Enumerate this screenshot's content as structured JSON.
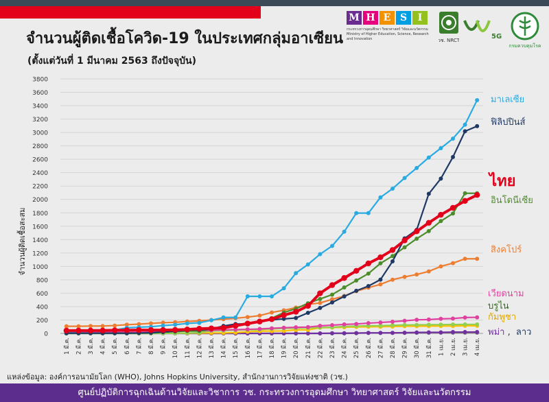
{
  "header": {
    "title": "จำนวนผู้ติดเชื้อโควิด-19 ในประเทศกลุ่มอาเซียน",
    "subtitle": "(ตั้งแต่วันที่ 1 มีนาคม 2563 ถึงปัจจุบัน)"
  },
  "logos": {
    "mhesi_letters": [
      "M",
      "H",
      "E",
      "S",
      "I"
    ],
    "mhesi_colors": [
      "#6b2c91",
      "#e5007d",
      "#f39200",
      "#009fe3",
      "#95c11f"
    ],
    "mhesi_caption": "กระทรวงการอุดมศึกษา วิทยาศาสตร์ วิจัยและนวัตกรรม Ministry of Higher Education, Science, Research and Innovation",
    "nrct_label": "วช. NRCT",
    "vch_label": "วช",
    "vch_5g": "5G",
    "dept_label": "กรมควบคุมโรค"
  },
  "source_text": "แหล่งข้อมูล: องค์การอนามัยโลก (WHO), Johns Hopkins University, สำนักงานการวิจัยแห่งชาติ (วช.)",
  "footer_text": "ศูนย์ปฏิบัติการฉุกเฉินด้านวิจัยและวิชาการ    วช.   กระทรวงการอุดมศึกษา วิทยาศาสตร์ วิจัยและนวัตกรรม",
  "chart_data": {
    "type": "line",
    "ylabel": "จำนวนผู้ติดเชื้อสะสม",
    "ylim": [
      0,
      3800
    ],
    "yticks": [
      0,
      200,
      400,
      600,
      800,
      1000,
      1200,
      1400,
      1600,
      1800,
      2000,
      2200,
      2400,
      2600,
      2800,
      3000,
      3200,
      3400,
      3600,
      3800
    ],
    "grid": true,
    "categories": [
      "1 มี.ค.",
      "2 มี.ค.",
      "3 มี.ค.",
      "4 มี.ค.",
      "5 มี.ค.",
      "6 มี.ค.",
      "7 มี.ค.",
      "8 มี.ค.",
      "9 มี.ค.",
      "10 มี.ค.",
      "11 มี.ค.",
      "12 มี.ค.",
      "13 มี.ค.",
      "14 มี.ค.",
      "15 มี.ค.",
      "16 มี.ค.",
      "17 มี.ค.",
      "18 มี.ค.",
      "19 มี.ค.",
      "20 มี.ค.",
      "21 มี.ค.",
      "22 มี.ค.",
      "23 มี.ค.",
      "24 มี.ค.",
      "25 มี.ค.",
      "26 มี.ค.",
      "27 มี.ค.",
      "28 มี.ค.",
      "29 มี.ค.",
      "30 มี.ค.",
      "31 มี.ค.",
      "1 เม.ย.",
      "2 เม.ย.",
      "3 เม.ย.",
      "4 เม.ย."
    ],
    "series": [
      {
        "name": "มาเลเซีย",
        "color": "#29abe2",
        "values": [
          29,
          29,
          36,
          50,
          50,
          83,
          93,
          99,
          117,
          129,
          149,
          158,
          197,
          238,
          238,
          553,
          553,
          553,
          673,
          900,
          1030,
          1183,
          1306,
          1518,
          1796,
          1796,
          2031,
          2161,
          2320,
          2470,
          2626,
          2766,
          2908,
          3116,
          3483
        ]
      },
      {
        "name": "ฟิลิปปินส์",
        "color": "#1f3864",
        "values": [
          3,
          3,
          3,
          3,
          3,
          3,
          6,
          10,
          20,
          33,
          49,
          52,
          64,
          111,
          140,
          142,
          187,
          202,
          217,
          230,
          307,
          380,
          462,
          552,
          636,
          707,
          803,
          1075,
          1418,
          1546,
          2084,
          2311,
          2633,
          3018,
          3094
        ]
      },
      {
        "name": "ไทย",
        "color": "#e3001b",
        "values": [
          42,
          42,
          43,
          43,
          47,
          48,
          50,
          50,
          50,
          53,
          59,
          70,
          75,
          82,
          114,
          147,
          177,
          212,
          272,
          322,
          411,
          599,
          721,
          827,
          934,
          1045,
          1136,
          1245,
          1388,
          1524,
          1651,
          1771,
          1875,
          1978,
          2067
        ]
      },
      {
        "name": "อินโดนีเซีย",
        "color": "#4d8c2a",
        "values": [
          2,
          2,
          2,
          2,
          2,
          2,
          4,
          6,
          19,
          27,
          34,
          34,
          69,
          96,
          117,
          134,
          172,
          227,
          311,
          369,
          450,
          514,
          579,
          686,
          790,
          893,
          1046,
          1155,
          1285,
          1414,
          1528,
          1677,
          1790,
          2092,
          2092
        ]
      },
      {
        "name": "สิงคโปร์",
        "color": "#ed7d31",
        "values": [
          106,
          106,
          110,
          110,
          117,
          130,
          138,
          150,
          160,
          166,
          178,
          187,
          200,
          212,
          226,
          243,
          266,
          313,
          345,
          385,
          432,
          455,
          509,
          558,
          631,
          683,
          732,
          802,
          844,
          879,
          926,
          1000,
          1049,
          1114,
          1114
        ]
      },
      {
        "name": "เวียดนาม",
        "color": "#e040a0",
        "values": [
          16,
          16,
          16,
          16,
          16,
          16,
          17,
          21,
          30,
          31,
          38,
          39,
          47,
          53,
          56,
          61,
          66,
          76,
          85,
          91,
          94,
          113,
          123,
          134,
          141,
          153,
          163,
          174,
          188,
          203,
          207,
          218,
          222,
          237,
          240
        ]
      },
      {
        "name": "บรูไน",
        "color": "#92d050",
        "values": [
          0,
          0,
          0,
          0,
          0,
          0,
          0,
          0,
          1,
          1,
          6,
          11,
          37,
          40,
          50,
          54,
          56,
          68,
          75,
          78,
          83,
          88,
          91,
          104,
          109,
          114,
          115,
          120,
          126,
          127,
          129,
          131,
          133,
          134,
          135
        ]
      },
      {
        "name": "กัมพูชา",
        "color": "#ffc000",
        "values": [
          1,
          1,
          1,
          1,
          1,
          1,
          2,
          2,
          2,
          2,
          3,
          5,
          7,
          7,
          12,
          24,
          33,
          35,
          37,
          51,
          53,
          84,
          87,
          91,
          96,
          98,
          99,
          103,
          107,
          107,
          109,
          110,
          110,
          114,
          114
        ]
      },
      {
        "name": "พม่า",
        "color": "#7030a0",
        "values": [
          0,
          0,
          0,
          0,
          0,
          0,
          0,
          0,
          0,
          0,
          0,
          0,
          0,
          0,
          0,
          0,
          0,
          0,
          0,
          0,
          0,
          0,
          3,
          3,
          5,
          8,
          8,
          8,
          10,
          14,
          15,
          15,
          20,
          20,
          21
        ]
      },
      {
        "name": "ลาว",
        "color": "#7f7f7f",
        "values": [
          0,
          0,
          0,
          0,
          0,
          0,
          0,
          0,
          0,
          0,
          0,
          0,
          0,
          0,
          0,
          0,
          0,
          0,
          0,
          0,
          0,
          0,
          0,
          0,
          3,
          6,
          6,
          8,
          8,
          9,
          9,
          10,
          10,
          10,
          10
        ]
      }
    ],
    "labels": {
      "malaysia": "มาเลเซีย",
      "philippines": "ฟิลิปปินส์",
      "thailand": "ไทย",
      "indonesia": "อินโดนีเซีย",
      "singapore": "สิงคโปร์",
      "vietnam": "เวียดนาม",
      "brunei": "บรูไน",
      "cambodia": "กัมพูชา",
      "myanmar_laos_a": "พม่า",
      "myanmar_laos_sep": ",",
      "myanmar_laos_b": "ลาว"
    },
    "label_colors": {
      "malaysia": "#29abe2",
      "philippines": "#1f3864",
      "thailand": "#e3001b",
      "indonesia": "#4d8c2a",
      "singapore": "#ed7d31",
      "vietnam": "#e040a0",
      "brunei": "#2f6b1c",
      "cambodia": "#e0a800",
      "myanmar_laos": "#7030a0",
      "laos": "#1f3864"
    }
  }
}
